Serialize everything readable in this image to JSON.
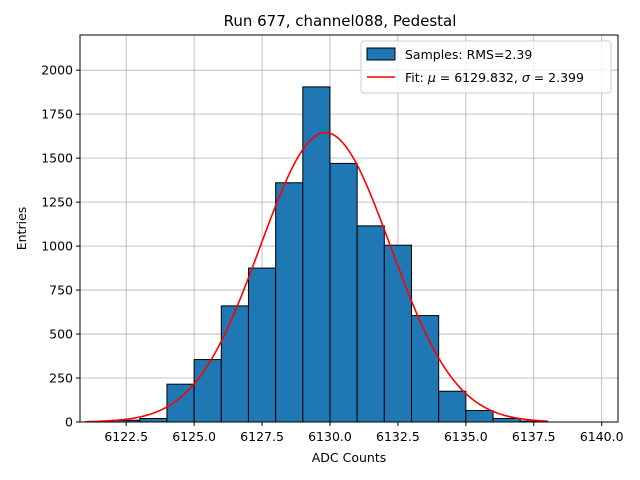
{
  "chart_data": {
    "type": "bar",
    "title": "Run 677, channel088, Pedestal",
    "xlabel": "ADC Counts",
    "ylabel": "Entries",
    "xlim": [
      6120.8,
      6140.6
    ],
    "ylim": [
      0,
      2200
    ],
    "grid": true,
    "legend_placement": "top-right",
    "x_ticks": [
      6122.5,
      6125.0,
      6127.5,
      6130.0,
      6132.5,
      6135.0,
      6137.5,
      6140.0
    ],
    "x_tick_labels": [
      "6122.5",
      "6125.0",
      "6127.5",
      "6130.0",
      "6132.5",
      "6135.0",
      "6137.5",
      "6140.0"
    ],
    "y_ticks": [
      0,
      250,
      500,
      750,
      1000,
      1250,
      1500,
      1750,
      2000
    ],
    "y_tick_labels": [
      "0",
      "250",
      "500",
      "750",
      "1000",
      "1250",
      "1500",
      "1750",
      "2000"
    ],
    "bins": [
      {
        "x0": 6122,
        "x1": 6123,
        "value": 10
      },
      {
        "x0": 6123,
        "x1": 6124,
        "value": 20
      },
      {
        "x0": 6124,
        "x1": 6125,
        "value": 215
      },
      {
        "x0": 6125,
        "x1": 6126,
        "value": 355
      },
      {
        "x0": 6126,
        "x1": 6127,
        "value": 660
      },
      {
        "x0": 6127,
        "x1": 6128,
        "value": 875
      },
      {
        "x0": 6128,
        "x1": 6129,
        "value": 1360
      },
      {
        "x0": 6129,
        "x1": 6130,
        "value": 1905
      },
      {
        "x0": 6130,
        "x1": 6131,
        "value": 1470
      },
      {
        "x0": 6131,
        "x1": 6132,
        "value": 1115
      },
      {
        "x0": 6132,
        "x1": 6133,
        "value": 1005
      },
      {
        "x0": 6133,
        "x1": 6134,
        "value": 605
      },
      {
        "x0": 6134,
        "x1": 6135,
        "value": 175
      },
      {
        "x0": 6135,
        "x1": 6136,
        "value": 65
      },
      {
        "x0": 6136,
        "x1": 6137,
        "value": 20
      },
      {
        "x0": 6137,
        "x1": 6138,
        "value": 5
      }
    ],
    "fit": {
      "mu": 6129.832,
      "sigma": 2.399,
      "amplitude": 1645,
      "x_range": [
        6121.0,
        6138.0
      ]
    },
    "legend": [
      {
        "label": "Samples: RMS=2.39",
        "color": "#1f77b4"
      },
      {
        "label_prefix": "Fit: ",
        "mu_symbol": "μ",
        "mu_text": " = 6129.832, ",
        "sigma_symbol": "σ",
        "sigma_text": " = 2.399",
        "color": "#ff0000"
      }
    ],
    "colors": {
      "bar": "#1f77b4",
      "bar_edge": "#000000",
      "fit": "#ff0000"
    }
  }
}
